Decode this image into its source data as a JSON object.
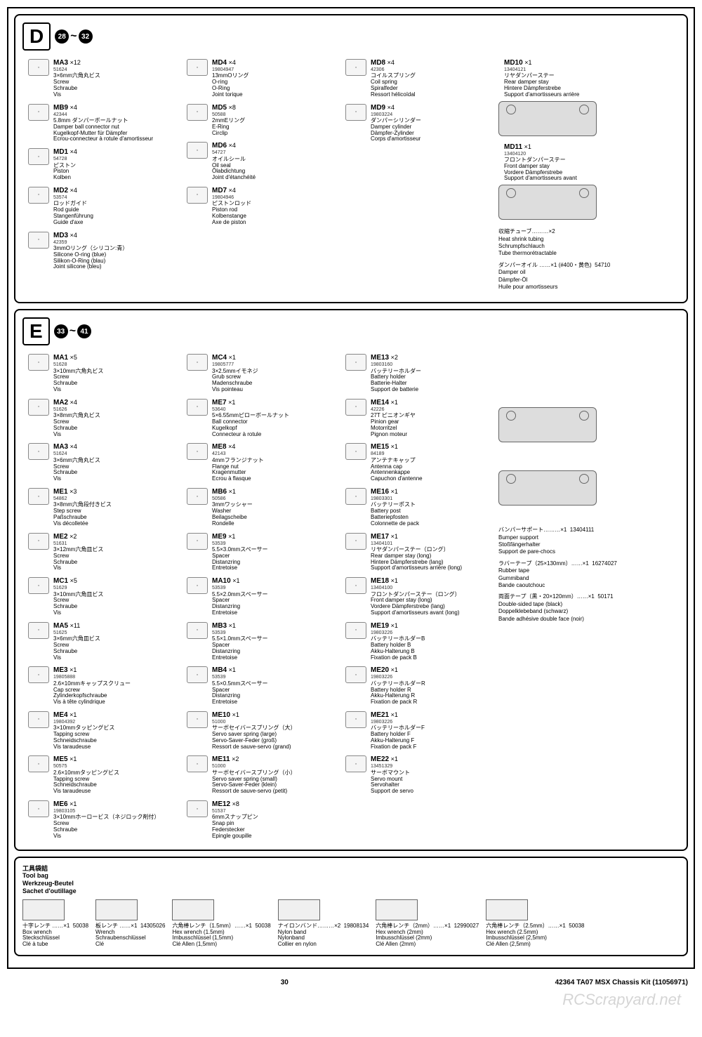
{
  "sectionD": {
    "letter": "D",
    "stepFrom": "28",
    "stepTo": "32",
    "parts": [
      {
        "code": "MA3",
        "qty": "×12",
        "num": "51624",
        "jp": "3×6mm六角丸ビス",
        "en": "Screw",
        "de": "Schraube",
        "fr": "Vis"
      },
      {
        "code": "MB9",
        "qty": "×4",
        "num": "42344",
        "jp": "5.8mm ダンパーボールナット",
        "en": "Damper ball connector nut",
        "de": "Kugelkopf-Mutter für Dämpfer",
        "fr": "Ecrou-connecteur à rotule d'amortisseur"
      },
      {
        "code": "MD1",
        "qty": "×4",
        "num": "54728",
        "jp": "ピストン",
        "en": "Piston",
        "de": "Kolben",
        "fr": ""
      },
      {
        "code": "MD2",
        "qty": "×4",
        "num": "53574",
        "jp": "ロッドガイド",
        "en": "Rod guide",
        "de": "Stangenführung",
        "fr": "Guide d'axe"
      },
      {
        "code": "MD3",
        "qty": "×4",
        "num": "42359",
        "jp": "3mmOリング（シリコン:青）",
        "en": "Silicone O-ring (blue)",
        "de": "Silikon-O-Ring (blau)",
        "fr": "Joint silicone (bleu)"
      },
      {
        "code": "MD4",
        "qty": "×4",
        "num": "19804947",
        "jp": "13mmOリング",
        "en": "O-ring",
        "de": "O-Ring",
        "fr": "Joint torique"
      },
      {
        "code": "MD5",
        "qty": "×8",
        "num": "50588",
        "jp": "2mmEリング",
        "en": "E-Ring",
        "de": "",
        "fr": "Circlip"
      },
      {
        "code": "MD6",
        "qty": "×4",
        "num": "54727",
        "jp": "オイルシール",
        "en": "Oil seal",
        "de": "Ölabdichtung",
        "fr": "Joint d'étanchéité"
      },
      {
        "code": "MD7",
        "qty": "×4",
        "num": "19804946",
        "jp": "ピストンロッド",
        "en": "Piston rod",
        "de": "Kolbenstange",
        "fr": "Axe de piston"
      },
      {
        "code": "MD8",
        "qty": "×4",
        "num": "42306",
        "jp": "コイルスプリング",
        "en": "Coil spring",
        "de": "Spiralfeder",
        "fr": "Ressort hélicoïdal"
      },
      {
        "code": "MD9",
        "qty": "×4",
        "num": "19803224",
        "jp": "ダンパーシリンダー",
        "en": "Damper cylinder",
        "de": "Dämpfer-Zylinder",
        "fr": "Corps d'amortisseur"
      },
      {
        "code": "MD10",
        "qty": "×1",
        "num": "13404121",
        "jp": "リヤダンパーステー",
        "en": "Rear damper stay",
        "de": "Hintere Dämpferstrebe",
        "fr": "Support d'amortisseurs arrière"
      },
      {
        "code": "MD11",
        "qty": "×1",
        "num": "13404120",
        "jp": "フロントダンパーステー",
        "en": "Front damper stay",
        "de": "Vordere Dämpferstrebe",
        "fr": "Support d'amortisseurs avant"
      }
    ],
    "extras": [
      {
        "jp": "収縮チューブ………×2",
        "en": "Heat shrink tubing",
        "de": "Schrumpfschlauch",
        "fr": "Tube thermorétractable"
      },
      {
        "jp": "ダンパーオイル ……×1 (#400・黄色)",
        "num": "54710",
        "en": "Damper oil",
        "de": "Dämpfer-Öl",
        "fr": "Huile pour amortisseurs"
      }
    ]
  },
  "sectionE": {
    "letter": "E",
    "stepFrom": "33",
    "stepTo": "41",
    "col1": [
      {
        "code": "MA1",
        "qty": "×5",
        "num": "51628",
        "jp": "3×10mm六角丸ビス",
        "en": "Screw",
        "de": "Schraube",
        "fr": "Vis"
      },
      {
        "code": "MA2",
        "qty": "×4",
        "num": "51626",
        "jp": "3×8mm六角丸ビス",
        "en": "Screw",
        "de": "Schraube",
        "fr": "Vis"
      },
      {
        "code": "MA3",
        "qty": "×4",
        "num": "51624",
        "jp": "3×6mm六角丸ビス",
        "en": "Screw",
        "de": "Schraube",
        "fr": "Vis"
      },
      {
        "code": "ME1",
        "qty": "×3",
        "num": "54862",
        "jp": "3×8mm六角段付きビス",
        "en": "Step screw",
        "de": "Paßschraube",
        "fr": "Vis décolletée"
      },
      {
        "code": "ME2",
        "qty": "×2",
        "num": "51631",
        "jp": "3×12mm六角皿ビス",
        "en": "Screw",
        "de": "Schraube",
        "fr": "Vis"
      },
      {
        "code": "MC1",
        "qty": "×5",
        "num": "51629",
        "jp": "3×10mm六角皿ビス",
        "en": "Screw",
        "de": "Schraube",
        "fr": "Vis"
      },
      {
        "code": "MA5",
        "qty": "×11",
        "num": "51625",
        "jp": "3×6mm六角皿ビス",
        "en": "Screw",
        "de": "Schraube",
        "fr": "Vis"
      },
      {
        "code": "ME3",
        "qty": "×1",
        "num": "19805888",
        "jp": "2.6×10mmキャップスクリュー",
        "en": "Cap screw",
        "de": "Zylinderkopfschraube",
        "fr": "Vis à tête cylindrique"
      },
      {
        "code": "ME4",
        "qty": "×1",
        "num": "19804392",
        "jp": "3×10mmタッピングビス",
        "en": "Tapping screw",
        "de": "Schneidschraube",
        "fr": "Vis taraudeuse"
      },
      {
        "code": "ME5",
        "qty": "×1",
        "num": "50575",
        "jp": "2.6×10mmタッピングビス",
        "en": "Tapping screw",
        "de": "Schneidschraube",
        "fr": "Vis taraudeuse"
      },
      {
        "code": "ME6",
        "qty": "×1",
        "num": "19803105",
        "jp": "3×10mmホーロービス（ネジロック剤付）",
        "en": "Screw",
        "de": "Schraube",
        "fr": "Vis"
      }
    ],
    "col2": [
      {
        "code": "MC4",
        "qty": "×1",
        "num": "19805777",
        "jp": "3×2.5mmイモネジ",
        "en": "Grub screw",
        "de": "Madenschraube",
        "fr": "Vis pointeau"
      },
      {
        "code": "ME7",
        "qty": "×1",
        "num": "53640",
        "jp": "5×6.55mmピローボールナット",
        "en": "Ball connector",
        "de": "Kugelkopf",
        "fr": "Connecteur à rotule"
      },
      {
        "code": "ME8",
        "qty": "×4",
        "num": "42143",
        "jp": "4mmフランジナット",
        "en": "Flange nut",
        "de": "Kragenmutter",
        "fr": "Ecrou à flasque"
      },
      {
        "code": "MB6",
        "qty": "×1",
        "num": "50586",
        "jp": "3mmワッシャー",
        "en": "Washer",
        "de": "Beilagscheibe",
        "fr": "Rondelle"
      },
      {
        "code": "ME9",
        "qty": "×1",
        "num": "53539",
        "jp": "5.5×3.0mmスペーサー",
        "en": "Spacer",
        "de": "Distanzring",
        "fr": "Entretoise"
      },
      {
        "code": "MA10",
        "qty": "×1",
        "num": "53539",
        "jp": "5.5×2.0mmスペーサー",
        "en": "Spacer",
        "de": "Distanzring",
        "fr": "Entretoise"
      },
      {
        "code": "MB3",
        "qty": "×1",
        "num": "53539",
        "jp": "5.5×1.0mmスペーサー",
        "en": "Spacer",
        "de": "Distanzring",
        "fr": "Entretoise"
      },
      {
        "code": "MB4",
        "qty": "×1",
        "num": "53539",
        "jp": "5.5×0.5mmスペーサー",
        "en": "Spacer",
        "de": "Distanzring",
        "fr": "Entretoise"
      },
      {
        "code": "ME10",
        "qty": "×1",
        "num": "51000",
        "jp": "サーボセイバースプリング（大）",
        "en": "Servo saver spring (large)",
        "de": "Servo-Saver-Feder (groß)",
        "fr": "Ressort de sauve-servo (grand)"
      },
      {
        "code": "ME11",
        "qty": "×2",
        "num": "51000",
        "jp": "サーボセイバースプリング（小）",
        "en": "Servo saver spring (small)",
        "de": "Servo-Saver-Feder (klein)",
        "fr": "Ressort de sauve-servo (petit)"
      },
      {
        "code": "ME12",
        "qty": "×8",
        "num": "51537",
        "jp": "6mmスナップピン",
        "en": "Snap pin",
        "de": "Federstecker",
        "fr": "Epingle goupille"
      }
    ],
    "col3": [
      {
        "code": "ME13",
        "qty": "×2",
        "num": "19803160",
        "jp": "バッテリーホルダー",
        "en": "Battery holder",
        "de": "Batterie-Halter",
        "fr": "Support de batterie"
      },
      {
        "code": "ME14",
        "qty": "×1",
        "num": "42226",
        "jp": "27T ピニオンギヤ",
        "en": "Pinion gear",
        "de": "Motorritzel",
        "fr": "Pignon moteur"
      },
      {
        "code": "ME15",
        "qty": "×1",
        "num": "84189",
        "jp": "アンテナキャップ",
        "en": "Antenna cap",
        "de": "Antennenkappe",
        "fr": "Capuchon d'antenne"
      },
      {
        "code": "ME16",
        "qty": "×1",
        "num": "19803301",
        "jp": "バッテリーポスト",
        "en": "Battery post",
        "de": "Batteriepfosten",
        "fr": "Colonnette de pack"
      },
      {
        "code": "ME17",
        "qty": "×1",
        "num": "13404101",
        "jp": "リヤダンパーステー（ロング）",
        "en": "Rear damper stay (long)",
        "de": "Hintere Dämpferstrebe (lang)",
        "fr": "Support d'amortisseurs arrière (long)"
      },
      {
        "code": "ME18",
        "qty": "×1",
        "num": "13404100",
        "jp": "フロントダンパーステー（ロング）",
        "en": "Front damper stay (long)",
        "de": "Vordere Dämpferstrebe (lang)",
        "fr": "Support d'amortisseurs avant (long)"
      },
      {
        "code": "ME19",
        "qty": "×1",
        "num": "19803226",
        "jp": "バッテリーホルダーB",
        "en": "Battery holder B",
        "de": "Akku-Halterung B",
        "fr": "Fixation de pack B"
      },
      {
        "code": "ME20",
        "qty": "×1",
        "num": "19803226",
        "jp": "バッテリーホルダーR",
        "en": "Battery holder R",
        "de": "Akku-Halterung R",
        "fr": "Fixation de pack R"
      },
      {
        "code": "ME21",
        "qty": "×1",
        "num": "19803226",
        "jp": "バッテリーホルダーF",
        "en": "Battery holder F",
        "de": "Akku-Halterung F",
        "fr": "Fixation de pack F"
      },
      {
        "code": "ME22",
        "qty": "×1",
        "num": "13451329",
        "jp": "サーボマウント",
        "en": "Servo mount",
        "de": "Servohalter",
        "fr": "Support de servo"
      }
    ],
    "extras": [
      {
        "jp": "バンパーサポート………×1",
        "num": "13404111",
        "en": "Bumper support",
        "de": "Stoßfängerhalter",
        "fr": "Support de pare-chocs"
      },
      {
        "jp": "ラバーテープ（25×130mm）……×1",
        "num": "16274027",
        "en": "Rubber tape",
        "de": "Gummiband",
        "fr": "Bande caoutchouc"
      },
      {
        "jp": "両面テープ（黒・20×120mm）……×1",
        "num": "50171",
        "en": "Double-sided tape (black)",
        "de": "Doppelklebeband (schwarz)",
        "fr": "Bande adhésive double face (noir)"
      }
    ]
  },
  "toolSection": {
    "title_jp": "工具袋詰",
    "title_en": "Tool bag",
    "title_de": "Werkzeug-Beutel",
    "title_fr": "Sachet d'outillage",
    "tools": [
      {
        "jp": "十字レンチ ……×1",
        "num": "50038",
        "en": "Box wrench",
        "de": "Steckschlüssel",
        "fr": "Clé à tube"
      },
      {
        "jp": "板レンチ ……×1",
        "num": "14305026",
        "en": "Wrench",
        "de": "Schraubenschlüssel",
        "fr": "Clé"
      },
      {
        "jp": "六角棒レンチ（1.5mm）……×1",
        "num": "50038",
        "en": "Hex wrench (1.5mm)",
        "de": "Imbusschlüssel (1,5mm)",
        "fr": "Clé Allen (1,5mm)"
      },
      {
        "jp": "ナイロンバンド………×2",
        "num": "19808134",
        "en": "Nylon band",
        "de": "Nylonband",
        "fr": "Collier en nylon"
      },
      {
        "jp": "六角棒レンチ（2mm）……×1",
        "num": "12990027",
        "en": "Hex wrench (2mm)",
        "de": "Imbusschlüssel (2mm)",
        "fr": "Clé Allen (2mm)"
      },
      {
        "jp": "六角棒レンチ（2.5mm）……×1",
        "num": "50038",
        "en": "Hex wrench (2.5mm)",
        "de": "Imbusschlüssel (2,5mm)",
        "fr": "Clé Allen (2,5mm)"
      }
    ]
  },
  "footer": {
    "page": "30",
    "product": "42364 TA07 MSX Chassis Kit (11056971)"
  },
  "watermark": "RCScrapyard.net"
}
